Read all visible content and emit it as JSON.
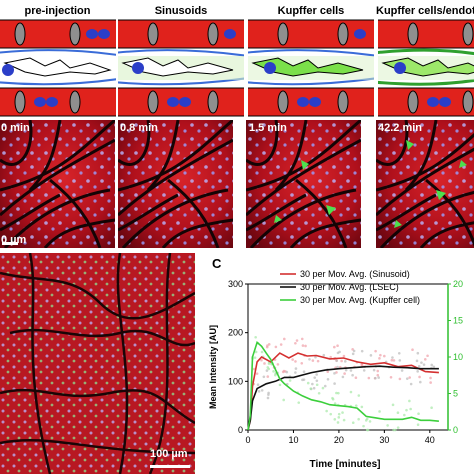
{
  "schematic": {
    "titles": [
      "pre-injection",
      "Sinusoids",
      "Kupffer cells",
      "Kupffer cells/endothel"
    ]
  },
  "micrographs": {
    "time_labels": [
      "0 min",
      "0.8 min",
      "1.5 min",
      "42.2 min"
    ],
    "scale_label": "0 µm"
  },
  "panel_b": {
    "scale_label": "100 µm"
  },
  "panel_c": {
    "letter": "C"
  },
  "colors": {
    "cell_red": "#e0221c",
    "nucleus_blue": "#2b3ec8",
    "sinusoid_series": "#d43030",
    "lsec_series": "#111111",
    "kupffer_series": "#3ccf3c",
    "right_axis": "#2fbf2f"
  },
  "chart_data": {
    "type": "line",
    "xlabel": "Time [minutes]",
    "ylabel": "Mean Intensity [AU]",
    "xlim": [
      0,
      44
    ],
    "ylim": [
      0,
      300
    ],
    "xticks": [
      0,
      10,
      20,
      30,
      40
    ],
    "yticks": [
      0,
      100,
      200,
      300
    ],
    "y2lim": [
      0,
      200
    ],
    "y2ticks": [
      0,
      50,
      100,
      150,
      200
    ],
    "y2ticklabels": [
      "0",
      "5",
      "10",
      "15",
      "20"
    ],
    "legend_position": "top",
    "series": [
      {
        "name": "30 per Mov. Avg. (Sinusoid)",
        "x": [
          0,
          0.5,
          1,
          2,
          3,
          5,
          7,
          9,
          11,
          13,
          15,
          18,
          21,
          24,
          27,
          30,
          33,
          36,
          39,
          42
        ],
        "values": [
          0,
          20,
          90,
          140,
          150,
          140,
          158,
          148,
          158,
          152,
          153,
          146,
          148,
          140,
          135,
          138,
          130,
          133,
          120,
          118
        ]
      },
      {
        "name": "30 per Mov. Avg. (LSEC)",
        "x": [
          0,
          0.5,
          1,
          2,
          4,
          6,
          8,
          10,
          12,
          14,
          17,
          20,
          23,
          26,
          29,
          32,
          35,
          38,
          41,
          42
        ],
        "values": [
          0,
          20,
          60,
          85,
          95,
          100,
          108,
          108,
          113,
          118,
          123,
          126,
          128,
          130,
          131,
          129,
          128,
          126,
          126,
          126
        ]
      },
      {
        "name": "30 per Mov. Avg. (Kupffer cell)",
        "x": [
          0,
          0.5,
          1,
          2,
          3,
          4,
          5,
          6,
          7,
          8,
          10,
          12,
          14,
          16,
          18,
          20,
          22,
          24,
          26,
          28,
          30,
          32,
          34,
          36,
          38,
          40,
          42
        ],
        "values": [
          0,
          30,
          150,
          180,
          172,
          158,
          145,
          125,
          105,
          95,
          80,
          70,
          62,
          58,
          52,
          50,
          48,
          45,
          28,
          25,
          22,
          22,
          22,
          26,
          20,
          20,
          18
        ]
      }
    ]
  }
}
